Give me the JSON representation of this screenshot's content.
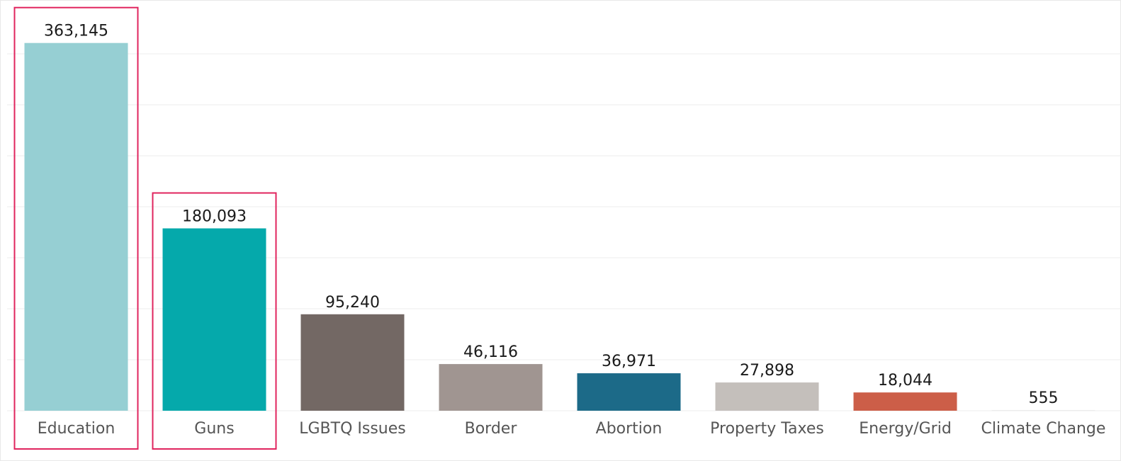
{
  "chart_data": {
    "type": "bar",
    "categories": [
      "Education",
      "Guns",
      "LGBTQ Issues",
      "Border",
      "Abortion",
      "Property Taxes",
      "Energy/Grid",
      "Climate Change"
    ],
    "values": [
      363145,
      180093,
      95240,
      46116,
      36971,
      27898,
      18044,
      555
    ],
    "value_labels": [
      "363,145",
      "180,093",
      "95,240",
      "46,116",
      "36,971",
      "27,898",
      "18,044",
      "555"
    ],
    "bar_colors": [
      "#96CFD3",
      "#05A9AB",
      "#736864",
      "#A09591",
      "#1C6A88",
      "#C4BFBB",
      "#CC5E48",
      "#E6E6E6"
    ],
    "title": "",
    "xlabel": "",
    "ylabel": "",
    "ylim": [
      0,
      400000
    ],
    "grid": true,
    "legend": "none",
    "highlighted_categories": [
      "Education",
      "Guns"
    ],
    "highlight_color": "#E0245E"
  }
}
